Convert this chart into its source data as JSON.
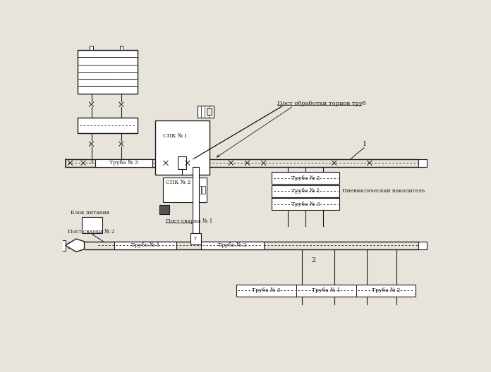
{
  "bg_color": "#e8e4dc",
  "line_color": "#1a1a1a",
  "fig_width": 6.96,
  "fig_height": 5.28,
  "dpi": 100,
  "labels": {
    "post_obrabotki": "Пост обработки торцов труб",
    "post_svarki_1": "Пост сварки № 1",
    "post_svarki_2": "Пост сварки № 2",
    "blok_pitania": "Блок питания",
    "pnevmo": "Пневматический накопитель",
    "spk1": "СПК № I",
    "spk2": "СПК № 2",
    "truba1": "Труба № 1",
    "truba2": "Труба № 2",
    "truba3": "Труба № 3",
    "index1": "I",
    "index2": "2"
  },
  "font_size": 5.5,
  "small_font_size": 5.0
}
